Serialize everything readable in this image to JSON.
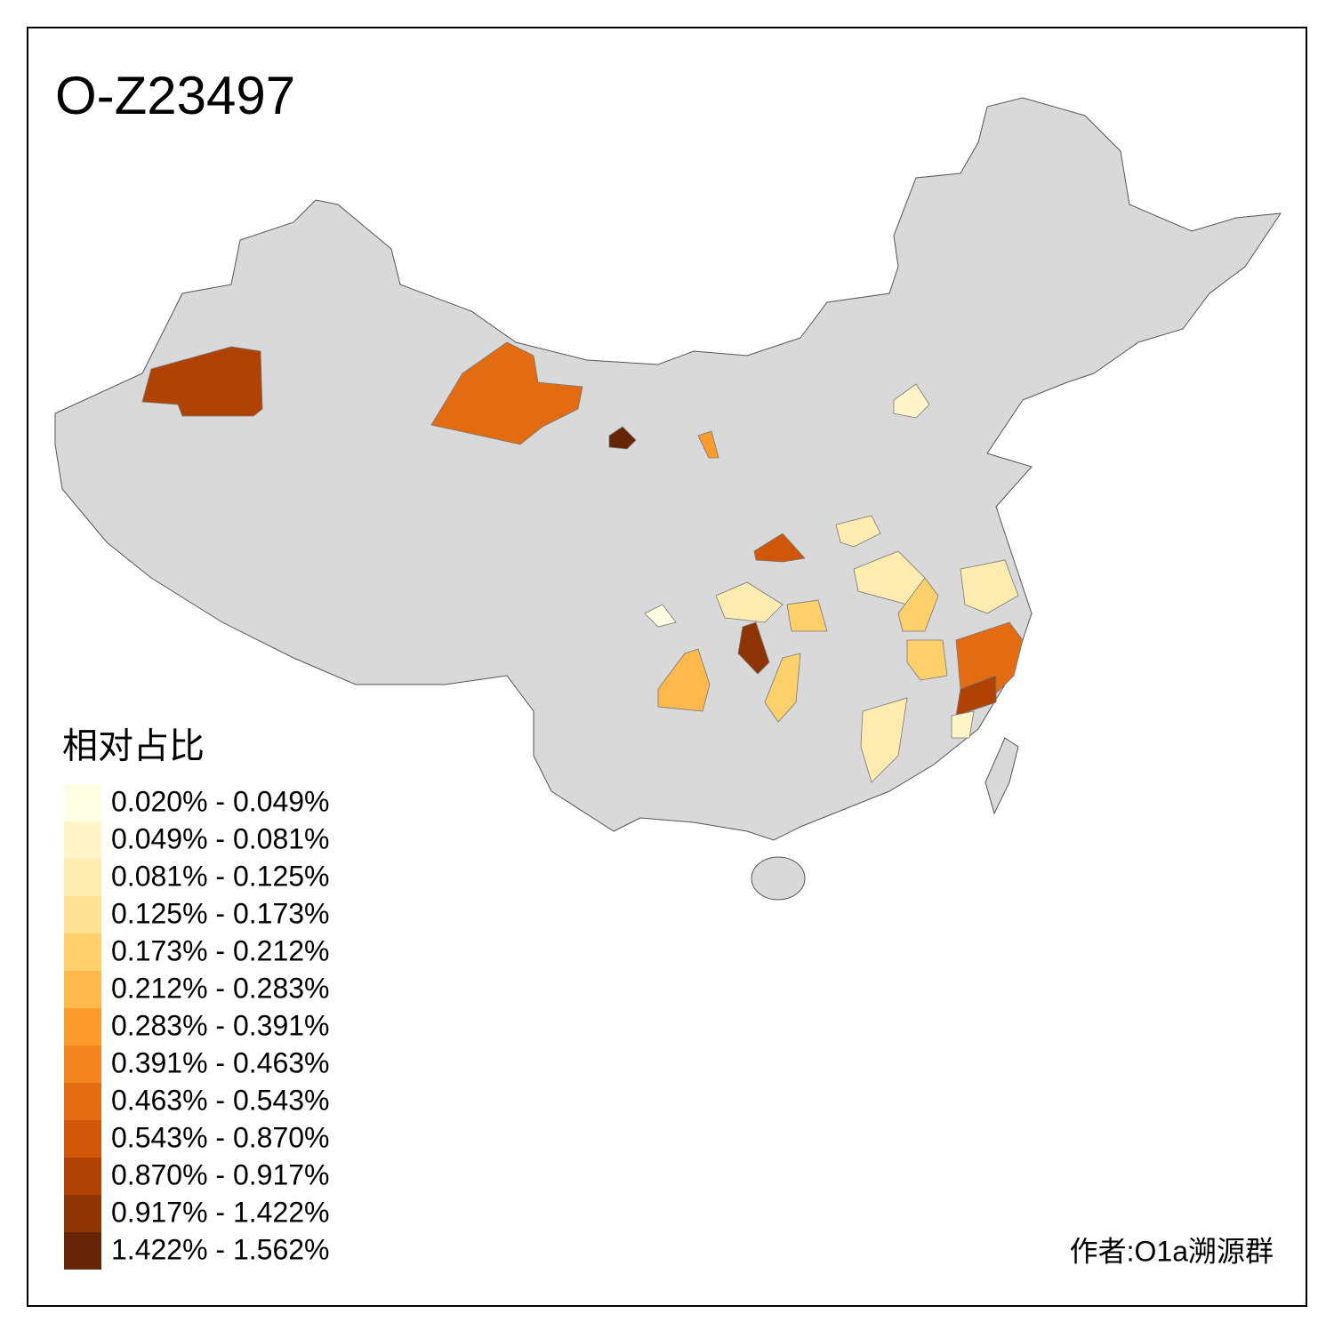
{
  "title": "O-Z23497",
  "legend": {
    "title": "相对占比",
    "items": [
      {
        "label": "0.020% - 0.049%",
        "color": "#ffffe3"
      },
      {
        "label": "0.049% - 0.081%",
        "color": "#fff5c8"
      },
      {
        "label": "0.081% - 0.125%",
        "color": "#feebb0"
      },
      {
        "label": "0.125% - 0.173%",
        "color": "#fee195"
      },
      {
        "label": "0.173% - 0.212%",
        "color": "#fed06c"
      },
      {
        "label": "0.212% - 0.283%",
        "color": "#feb84c"
      },
      {
        "label": "0.283% - 0.391%",
        "color": "#fc9b2d"
      },
      {
        "label": "0.391% - 0.463%",
        "color": "#f4841f"
      },
      {
        "label": "0.463% - 0.543%",
        "color": "#e36c12"
      },
      {
        "label": "0.543% - 0.870%",
        "color": "#d05608"
      },
      {
        "label": "0.870% - 0.917%",
        "color": "#b04304"
      },
      {
        "label": "0.917% - 1.422%",
        "color": "#8e3304"
      },
      {
        "label": "1.422% - 1.562%",
        "color": "#662506"
      }
    ]
  },
  "author": "作者:O1a溯源群"
}
